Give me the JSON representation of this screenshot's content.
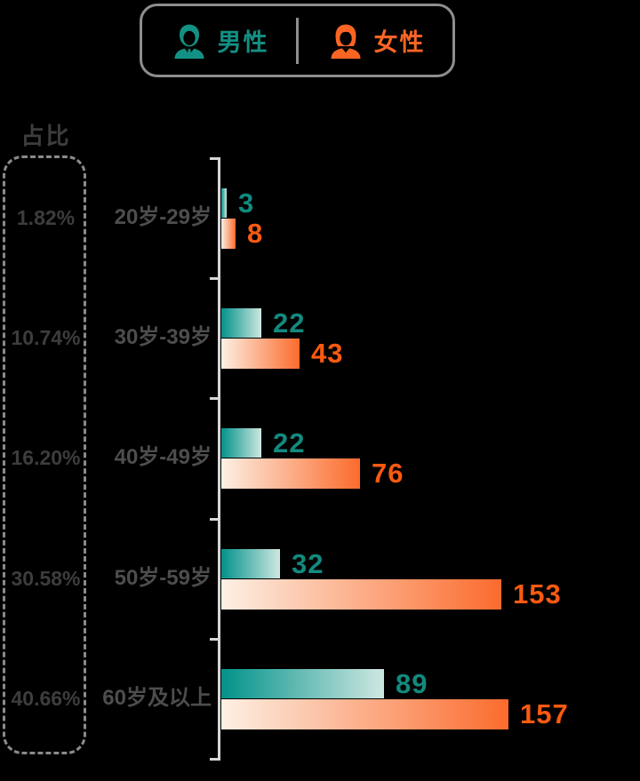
{
  "legend": {
    "male": {
      "label": "男性"
    },
    "female": {
      "label": "女性"
    }
  },
  "panel_title": "占比",
  "chart_data": {
    "type": "bar",
    "orientation": "horizontal",
    "categories": [
      "20岁-29岁",
      "30岁-39岁",
      "40岁-49岁",
      "50岁-59岁",
      "60岁及以上"
    ],
    "share_labels": [
      "1.82%",
      "10.74%",
      "16.20%",
      "30.58%",
      "40.66%"
    ],
    "series": [
      {
        "name": "男性",
        "values": [
          3,
          22,
          22,
          32,
          89
        ],
        "color": "#01928a",
        "color_light": "#cfe7e1",
        "label_color": "#128a7f"
      },
      {
        "name": "女性",
        "values": [
          8,
          43,
          76,
          153,
          157
        ],
        "color": "#fb6b2d",
        "color_light": "#fdf0e4",
        "label_color": "#fc5a10"
      }
    ],
    "value_labels_shown": true,
    "legend_position": "top",
    "xlim": [
      0,
      170
    ]
  },
  "colors": {
    "background": "#000000",
    "male_accent": "#129184",
    "female_accent": "#fb6524",
    "axis": "#d6d6d6",
    "panel_border": "#8a8a8a",
    "legend_border": "#8e8e8e",
    "muted_text": "#3d3d3d",
    "category_text": "#4d4d4d"
  }
}
